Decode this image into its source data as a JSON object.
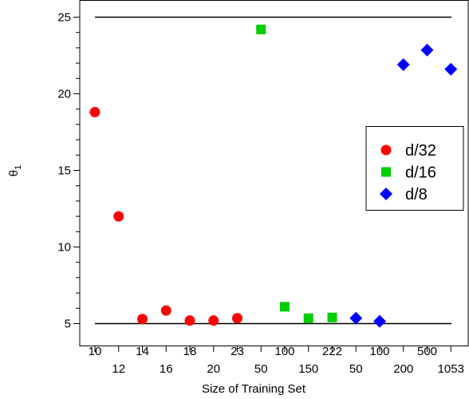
{
  "chart_data": {
    "type": "scatter",
    "xlabel": "Size of Training Set",
    "ylabel": "θ",
    "ylabel_subscript": "1",
    "ylim": [
      4.5,
      25.5
    ],
    "yticks": [
      "5",
      "10",
      "15",
      "20",
      "25"
    ],
    "reference_lines": [
      5,
      25
    ],
    "grid": false,
    "legend_position": "right",
    "categories": [
      "10",
      "12",
      "14",
      "16",
      "18",
      "20",
      "23",
      "50",
      "100",
      "150",
      "222",
      "50",
      "100",
      "200",
      "500",
      "1053"
    ],
    "series": [
      {
        "name": "d/32",
        "marker": "circle",
        "color": "#ff0000",
        "x": [
          "10",
          "12",
          "14",
          "16",
          "18",
          "20",
          "23"
        ],
        "y": [
          18.8,
          12.0,
          5.3,
          5.85,
          5.2,
          5.2,
          5.35
        ]
      },
      {
        "name": "d/16",
        "marker": "square",
        "color": "#00cd00",
        "x": [
          "50",
          "100",
          "150",
          "222"
        ],
        "y": [
          24.2,
          6.1,
          5.35,
          5.4
        ]
      },
      {
        "name": "d/8",
        "marker": "diamond",
        "color": "#0000ff",
        "x": [
          "50",
          "100",
          "200",
          "500",
          "1053"
        ],
        "y": [
          5.35,
          5.15,
          21.9,
          22.85,
          21.6
        ]
      }
    ]
  }
}
